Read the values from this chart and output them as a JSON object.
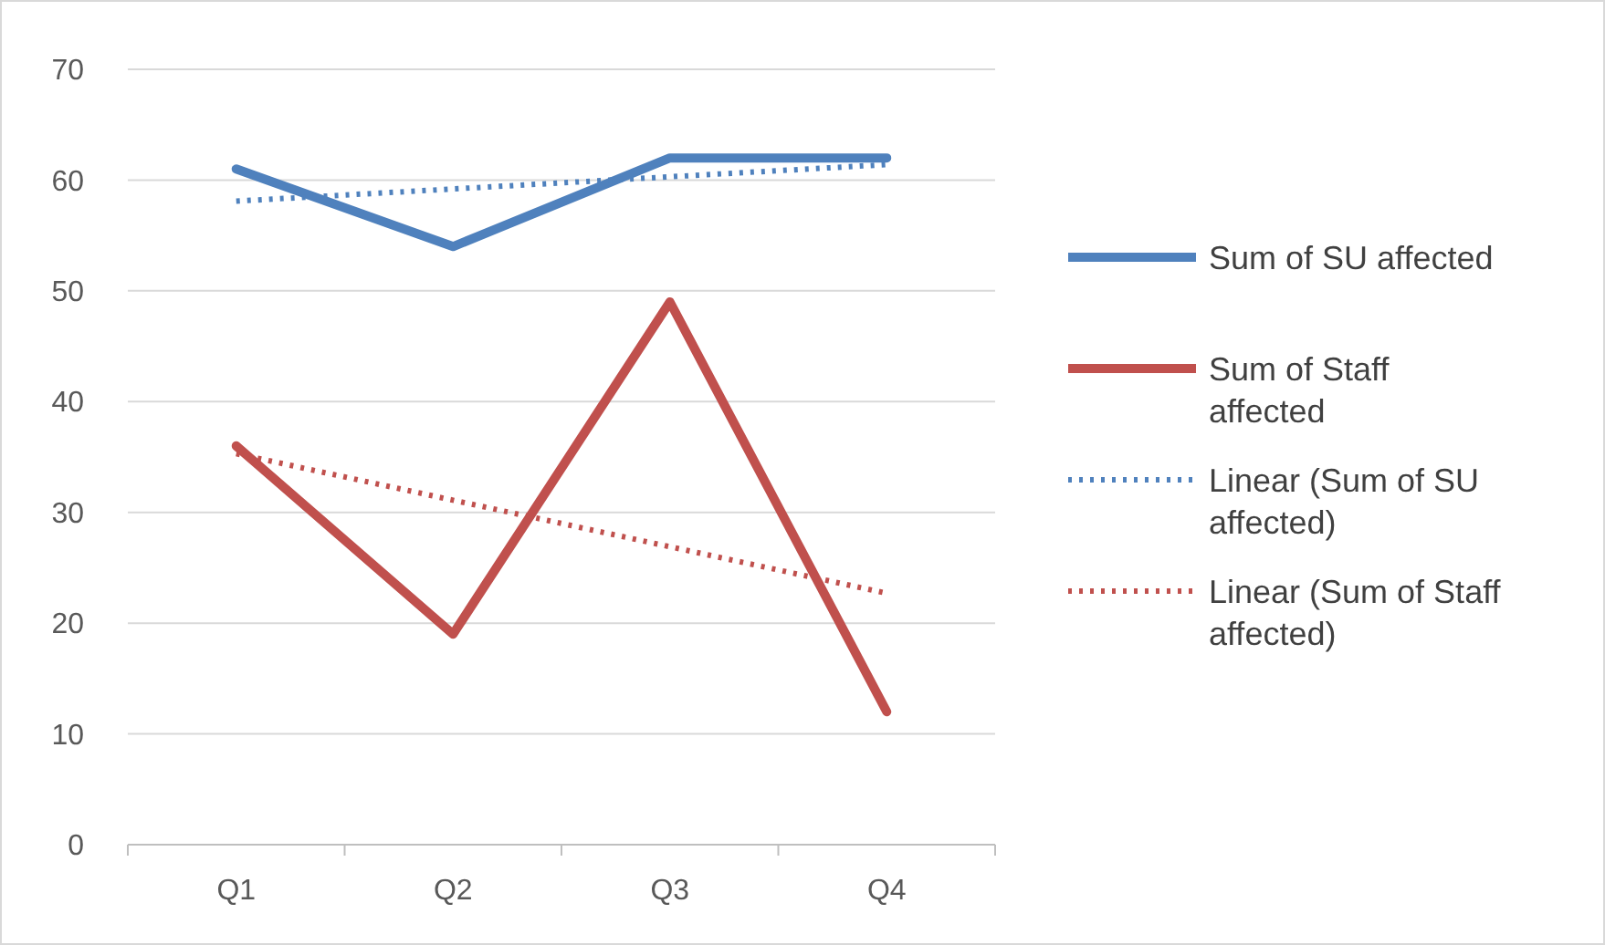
{
  "chart_data": {
    "type": "line",
    "categories": [
      "Q1",
      "Q2",
      "Q3",
      "Q4"
    ],
    "series": [
      {
        "name": "Sum of SU affected",
        "color": "#4f81bd",
        "values": [
          61,
          54,
          62,
          62
        ],
        "line_style": "solid"
      },
      {
        "name": "Sum of Staff affected",
        "color": "#c0504d",
        "values": [
          36,
          19,
          49,
          12
        ],
        "line_style": "solid"
      },
      {
        "name": "Linear (Sum of SU affected)",
        "color": "#4f81bd",
        "values": [
          58.1,
          59.2,
          60.3,
          61.4
        ],
        "line_style": "dotted"
      },
      {
        "name": "Linear (Sum of Staff affected)",
        "color": "#c0504d",
        "values": [
          35.3,
          31.1,
          26.9,
          22.7
        ],
        "line_style": "dotted"
      }
    ],
    "ylim": [
      0,
      70
    ],
    "yticks": [
      0,
      10,
      20,
      30,
      40,
      50,
      60,
      70
    ],
    "grid": "y",
    "legend": "right",
    "marker": "none"
  }
}
